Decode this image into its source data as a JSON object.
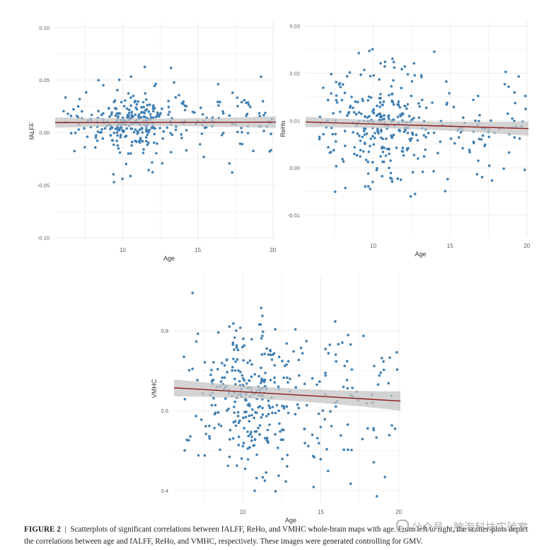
{
  "colors": {
    "point": "#3f7fb3",
    "fit_line": "#8b1a1a",
    "confidence_band": "#c4c4c4",
    "grid": "#ececec",
    "tick_text": "#5a5a5a"
  },
  "caption": {
    "label": "FIGURE 2",
    "separator": "|",
    "text": "Scatterplots of significant correlations between fALFF, ReHo, and VMHC whole-brain maps with age. From left to right, the scatter-plots depict the correlations between age and fALFF, ReHo, and VMHC, respectively. These images were generated controlling for GMV."
  },
  "watermark": {
    "text": "公众号 · 脑海科技实验室",
    "icon": "wechat-icon"
  },
  "chart_data": [
    {
      "type": "scatter",
      "xlabel": "Age",
      "ylabel": "fALFF",
      "xlim": [
        5.5,
        20.2
      ],
      "ylim": [
        -0.103,
        0.106
      ],
      "xticks": [
        10,
        15,
        20
      ],
      "yticks": [
        -0.1,
        -0.05,
        0.0,
        0.05,
        0.1
      ],
      "ytick_labels": [
        "-0.10",
        "-0.05",
        "0.00",
        "0.05",
        "0.10"
      ],
      "grid": true,
      "fit": {
        "x": [
          5.5,
          20.2
        ],
        "y": [
          0.0095,
          0.0099
        ],
        "band_halfwidth": [
          0.005,
          0.0055
        ]
      },
      "points": {
        "n": 360,
        "x_range": [
          6,
          20
        ],
        "center": 0.0095,
        "spread": 0.013,
        "tail": 0.045,
        "seed": 11,
        "peak_age": 10.5
      }
    },
    {
      "type": "scatter",
      "xlabel": "Age",
      "ylabel": "ReHo",
      "xlim": [
        5.6,
        20.1
      ],
      "ylim": [
        -0.0145,
        0.031
      ],
      "xticks": [
        10,
        15,
        20
      ],
      "yticks": [
        -0.01,
        0.0,
        0.01,
        0.02,
        0.03
      ],
      "ytick_labels": [
        "-0.01",
        "0.00",
        "0.01",
        "0.02",
        "0.03"
      ],
      "grid": true,
      "fit": {
        "x": [
          5.6,
          20.1
        ],
        "y": [
          0.0097,
          0.0083
        ],
        "band_halfwidth": [
          0.0011,
          0.0015
        ]
      },
      "points": {
        "n": 360,
        "x_range": [
          6.5,
          20
        ],
        "center": 0.0092,
        "spread": 0.0052,
        "tail": 0.011,
        "seed": 23,
        "peak_age": 10.5
      }
    },
    {
      "type": "scatter",
      "xlabel": "Age",
      "ylabel": "VMHC",
      "xlim": [
        5.6,
        20.1
      ],
      "ylim": [
        0.37,
        0.94
      ],
      "xticks": [
        10,
        15,
        20
      ],
      "yticks": [
        0.4,
        0.6,
        0.8
      ],
      "ytick_labels": [
        "0.4",
        "0.6",
        "0.8"
      ],
      "grid": true,
      "fit": {
        "x": [
          5.6,
          20.1
        ],
        "y": [
          0.657,
          0.624
        ],
        "band_halfwidth": [
          0.021,
          0.024
        ]
      },
      "points": {
        "n": 380,
        "x_range": [
          6,
          20
        ],
        "center": 0.64,
        "spread": 0.085,
        "tail": 0.15,
        "seed": 37,
        "peak_age": 10.5
      }
    }
  ]
}
